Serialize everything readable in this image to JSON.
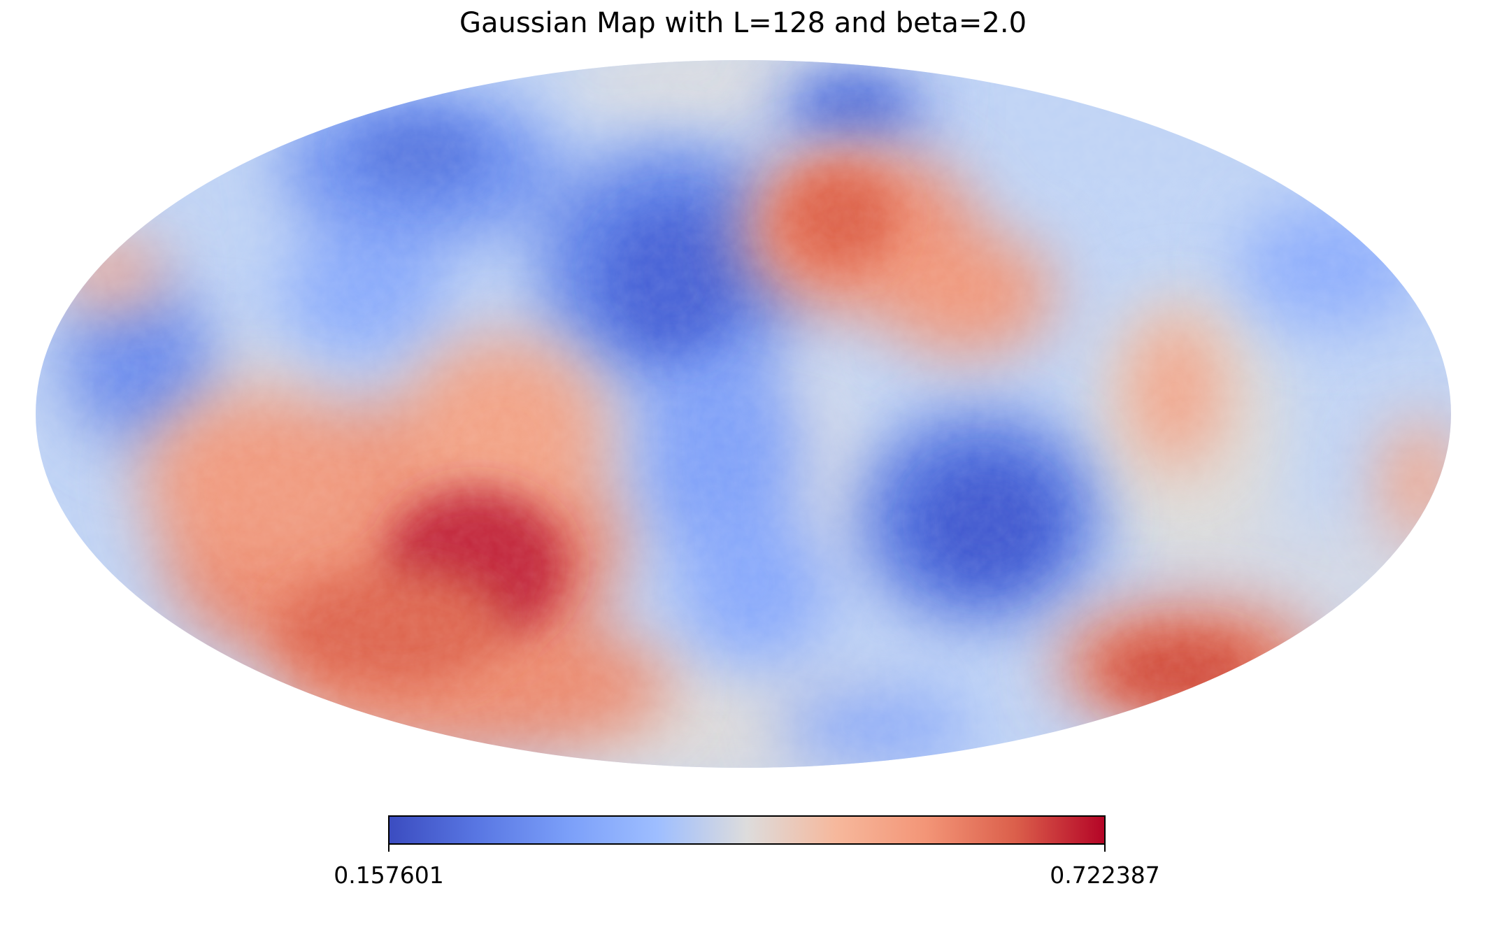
{
  "chart_data": {
    "type": "heatmap",
    "projection": "mollweide",
    "title": "Gaussian Map with L=128 and beta=2.0",
    "colormap": "coolwarm",
    "colorbar": {
      "orientation": "horizontal",
      "min_label": "0.157601",
      "max_label": "0.722387",
      "min": 0.157601,
      "max": 0.722387
    },
    "colors": {
      "low": "#3b4cc0",
      "mid": "#dddddd",
      "high": "#b40426"
    }
  }
}
